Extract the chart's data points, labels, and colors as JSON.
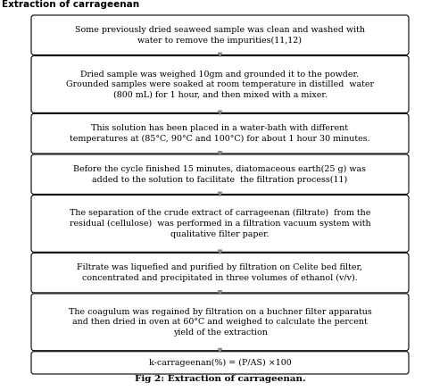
{
  "title": "Extraction of carrageenan",
  "caption": "Fig 2: Extraction of carrageenan.",
  "boxes": [
    "Some previously dried seaweed sample was clean and washed with\nwater to remove the impurities(11,12)",
    "Dried sample was weighed 10gm and grounded it to the powder.\nGrounded samples were soaked at room temperature in distilled  water\n(800 mL) for 1 hour, and then mixed with a mixer.",
    "This solution has been placed in a water-bath with different\ntemperatures at (85°C, 90°C and 100°C) for about 1 hour 30 minutes.",
    "Before the cycle finished 15 minutes, diatomaceous earth(25 g) was\nadded to the solution to facilitate  the filtration process(11)",
    "The separation of the crude extract of carrageenan (filtrate)  from the\nresidual (cellulose)  was performed in a filtration vacuum system with\nqualitative filter paper.",
    "Filtrate was liquefied and purified by filtration on Celite bed filter,\nconcentrated and precipitated in three volumes of ethanol (v/v).",
    "The coagulum was regained by filtration on a buchner filter apparatus\nand then dried in oven at 60°C and weighed to calculate the percent\nyield of the extraction",
    "k-carrageenan(%) = (P/AS) ×100"
  ],
  "superscripts": [
    "(11,12)",
    "",
    "",
    "(11)",
    "",
    "",
    "",
    ""
  ],
  "box_bg": "#ffffff",
  "box_edge": "#000000",
  "arrow_color": "#888888",
  "text_color": "#000000",
  "fig_bg": "#ffffff",
  "fontsize": 6.8,
  "caption_fontsize": 7.5,
  "title_fontsize": 7.5,
  "line_counts": [
    2,
    3,
    2,
    2,
    3,
    2,
    3,
    1
  ]
}
